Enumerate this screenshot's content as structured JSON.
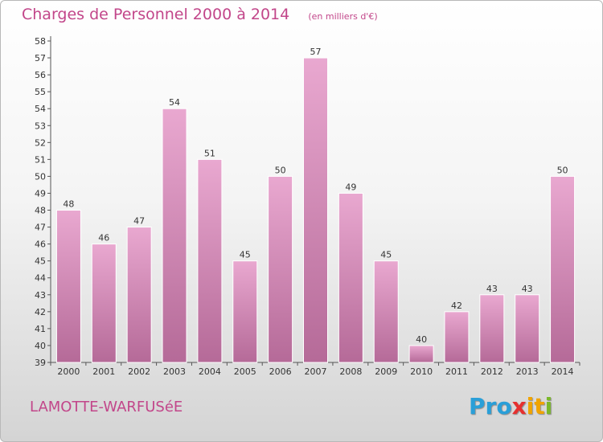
{
  "header": {
    "title": "Charges de Personnel 2000 à 2014",
    "subtitle": "(en milliers d'€)"
  },
  "footer": {
    "commune": "LAMOTTE-WARFUSéE",
    "logo_parts": [
      "Pro",
      "x",
      "it",
      "i"
    ]
  },
  "colors": {
    "title": "#c2468a",
    "bar_top": "#e9a8d0",
    "bar_bottom": "#b56a98"
  },
  "chart_data": {
    "type": "bar",
    "title": "Charges de Personnel 2000 à 2014",
    "subtitle": "(en milliers d'€)",
    "categories": [
      "2000",
      "2001",
      "2002",
      "2003",
      "2004",
      "2005",
      "2006",
      "2007",
      "2008",
      "2009",
      "2010",
      "2011",
      "2012",
      "2013",
      "2014"
    ],
    "values": [
      48,
      46,
      47,
      54,
      51,
      45,
      50,
      57,
      49,
      45,
      40,
      42,
      43,
      43,
      50
    ],
    "xlabel": "",
    "ylabel": "",
    "ylim": [
      39,
      58
    ],
    "yticks": [
      39,
      40,
      41,
      42,
      43,
      44,
      45,
      46,
      47,
      48,
      49,
      50,
      51,
      52,
      53,
      54,
      55,
      56,
      57,
      58
    ],
    "grid": false,
    "data_labels": true
  }
}
